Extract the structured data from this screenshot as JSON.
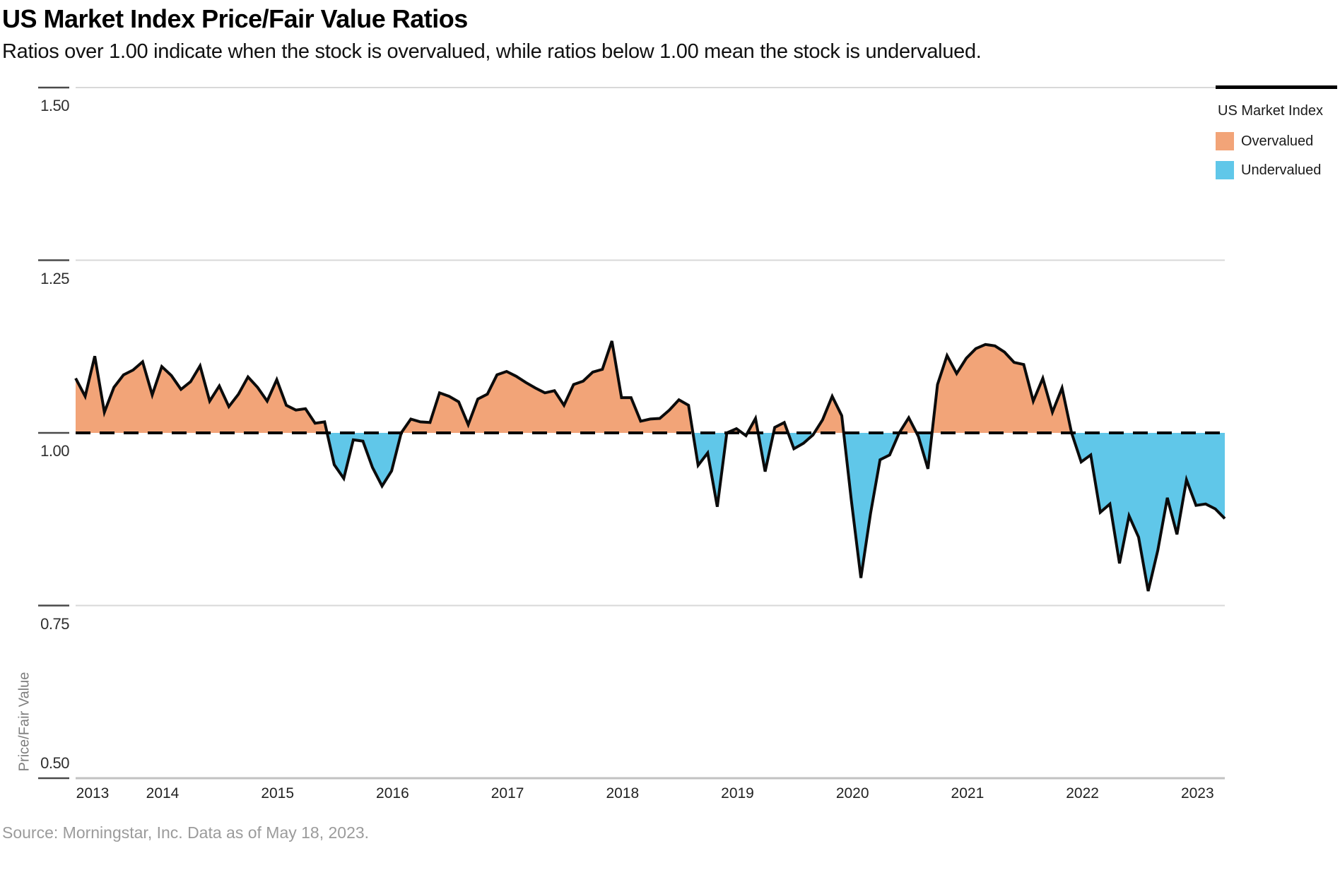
{
  "header": {
    "title": "US Market Index Price/Fair Value Ratios",
    "subtitle": "Ratios over 1.00 indicate when the stock is overvalued, while ratios below 1.00 mean the stock is undervalued."
  },
  "legend": {
    "title": "US Market Index",
    "items": [
      {
        "label": "Overvalued",
        "color": "#F2A478"
      },
      {
        "label": "Undervalued",
        "color": "#60C7E9"
      }
    ]
  },
  "y_axis": {
    "title": "Price/Fair Value",
    "tick_labels": [
      "1.50",
      "1.25",
      "1.00",
      "0.75",
      "0.50"
    ]
  },
  "x_axis": {
    "years": [
      "2013",
      "2014",
      "2015",
      "2016",
      "2017",
      "2018",
      "2019",
      "2020",
      "2021",
      "2022",
      "2023"
    ]
  },
  "source": "Source: Morningstar, Inc. Data as of May 18, 2023.",
  "chart_data": {
    "type": "area",
    "title": "US Market Index Price/Fair Value Ratios",
    "series_name": "US Market Index",
    "frequency": "monthly",
    "start": "2013-05",
    "end": "2023-05",
    "baseline": 1.0,
    "ylim": [
      0.5,
      1.5
    ],
    "y_ticks": [
      1.5,
      1.25,
      1.0,
      0.75,
      0.5
    ],
    "grid": "horizontal",
    "legend_position": "top-right",
    "overvalued_color": "#F2A478",
    "undervalued_color": "#60C7E9",
    "line_color": "#0b0b0b",
    "values": [
      1.079,
      1.053,
      1.111,
      1.03,
      1.066,
      1.084,
      1.091,
      1.103,
      1.055,
      1.096,
      1.083,
      1.063,
      1.074,
      1.097,
      1.046,
      1.068,
      1.038,
      1.056,
      1.081,
      1.066,
      1.046,
      1.077,
      1.04,
      1.033,
      1.035,
      1.014,
      1.016,
      0.954,
      0.934,
      0.99,
      0.988,
      0.95,
      0.923,
      0.945,
      1.0,
      1.02,
      1.016,
      1.015,
      1.058,
      1.053,
      1.045,
      1.012,
      1.049,
      1.056,
      1.084,
      1.089,
      1.082,
      1.073,
      1.065,
      1.058,
      1.061,
      1.04,
      1.07,
      1.075,
      1.088,
      1.092,
      1.133,
      1.051,
      1.051,
      1.017,
      1.02,
      1.021,
      1.033,
      1.048,
      1.04,
      0.953,
      0.971,
      0.893,
      1.0,
      1.006,
      0.996,
      1.021,
      0.944,
      1.008,
      1.015,
      0.977,
      0.985,
      0.997,
      1.019,
      1.053,
      1.025,
      0.903,
      0.79,
      0.883,
      0.961,
      0.968,
      1.0,
      1.022,
      0.995,
      0.948,
      1.07,
      1.112,
      1.086,
      1.108,
      1.122,
      1.128,
      1.126,
      1.117,
      1.102,
      1.099,
      1.046,
      1.079,
      1.03,
      1.065,
      1.0,
      0.958,
      0.968,
      0.885,
      0.897,
      0.811,
      0.88,
      0.849,
      0.771,
      0.83,
      0.906,
      0.853,
      0.932,
      0.895,
      0.897,
      0.89,
      0.876
    ]
  }
}
